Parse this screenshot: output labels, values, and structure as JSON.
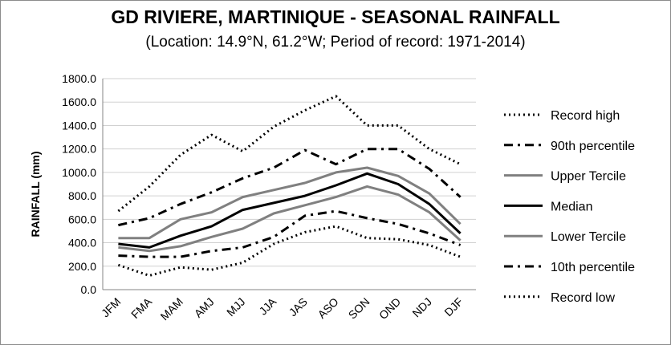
{
  "chart_data": {
    "type": "line",
    "title": "GD RIVIERE, MARTINIQUE - SEASONAL RAINFALL",
    "subtitle": "(Location: 14.9°N, 61.2°W; Period of record: 1971-2014)",
    "ylabel": "RAINFALL (mm)",
    "xlabel": "",
    "ylim": [
      0,
      1800
    ],
    "ytick_step": 200,
    "ytick_labels": [
      "0.0",
      "200.0",
      "400.0",
      "600.0",
      "800.0",
      "1000.0",
      "1200.0",
      "1400.0",
      "1600.0",
      "1800.0"
    ],
    "grid": "horizontal",
    "legend_position": "right",
    "categories": [
      "JFM",
      "FMA",
      "MAM",
      "AMJ",
      "MJJ",
      "JJA",
      "JAS",
      "ASO",
      "SON",
      "OND",
      "NDJ",
      "DJF"
    ],
    "series": [
      {
        "name": "Record high",
        "style": "dotted",
        "color": "#000000",
        "values": [
          670,
          880,
          1150,
          1320,
          1180,
          1390,
          1530,
          1650,
          1400,
          1400,
          1200,
          1070
        ]
      },
      {
        "name": "90th percentile",
        "style": "dashdot",
        "color": "#000000",
        "values": [
          550,
          610,
          730,
          830,
          950,
          1040,
          1190,
          1070,
          1200,
          1200,
          1030,
          790
        ]
      },
      {
        "name": "Upper Tercile",
        "style": "solid",
        "color": "#808080",
        "values": [
          440,
          440,
          600,
          660,
          790,
          850,
          910,
          1000,
          1040,
          970,
          820,
          560
        ]
      },
      {
        "name": "Median",
        "style": "solid",
        "color": "#000000",
        "values": [
          390,
          360,
          460,
          540,
          680,
          740,
          800,
          890,
          990,
          900,
          730,
          480
        ]
      },
      {
        "name": "Lower Tercile",
        "style": "solid",
        "color": "#808080",
        "values": [
          360,
          330,
          370,
          450,
          520,
          650,
          720,
          790,
          880,
          810,
          660,
          420
        ]
      },
      {
        "name": "10th percentile",
        "style": "dashdot",
        "color": "#000000",
        "values": [
          290,
          280,
          280,
          330,
          360,
          450,
          630,
          670,
          610,
          560,
          480,
          380
        ]
      },
      {
        "name": "Record low",
        "style": "dotted",
        "color": "#000000",
        "values": [
          210,
          120,
          190,
          170,
          230,
          390,
          490,
          540,
          440,
          430,
          380,
          280
        ]
      }
    ]
  }
}
